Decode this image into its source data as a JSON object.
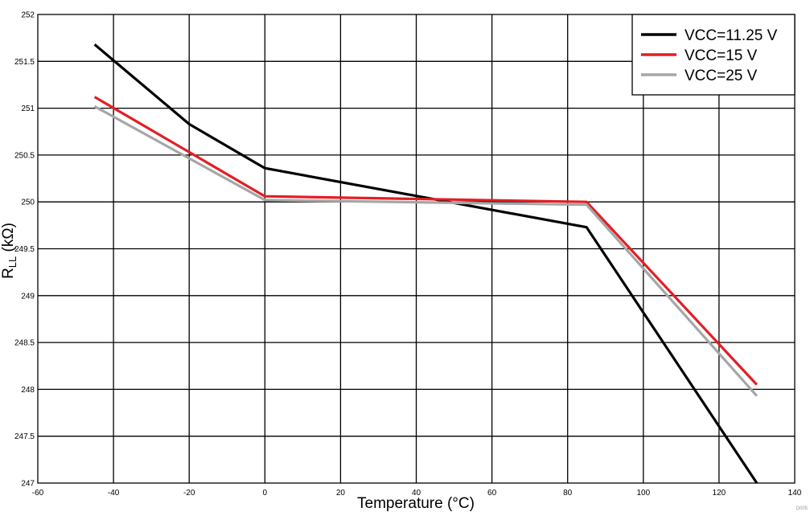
{
  "chart_data": {
    "type": "line",
    "xlabel": "Temperature (°C)",
    "ylabel_main": "R",
    "ylabel_sub": "LL",
    "ylabel_unit": " (kΩ)",
    "xlim": [
      -60,
      140
    ],
    "ylim": [
      247,
      252
    ],
    "x_ticks": [
      -60,
      -40,
      -20,
      0,
      20,
      40,
      60,
      80,
      100,
      120,
      140
    ],
    "y_ticks": [
      247,
      247.5,
      248,
      248.5,
      249,
      249.5,
      250,
      250.5,
      251,
      251.5,
      252
    ],
    "grid": true,
    "legend_position": "top-right",
    "footnote": "D005",
    "series": [
      {
        "name": "VCC=11.25 V",
        "color": "#000000",
        "x": [
          -45,
          -20,
          0,
          85,
          130
        ],
        "y": [
          251.68,
          250.83,
          250.36,
          249.73,
          247.0
        ]
      },
      {
        "name": "VCC=15 V",
        "color": "#e31e24",
        "x": [
          -45,
          0,
          85,
          130
        ],
        "y": [
          251.12,
          250.06,
          250.0,
          248.05
        ]
      },
      {
        "name": "VCC=25 V",
        "color": "#a6a6a6",
        "x": [
          -45,
          0,
          85,
          130
        ],
        "y": [
          251.02,
          250.02,
          249.97,
          247.93
        ]
      }
    ]
  }
}
